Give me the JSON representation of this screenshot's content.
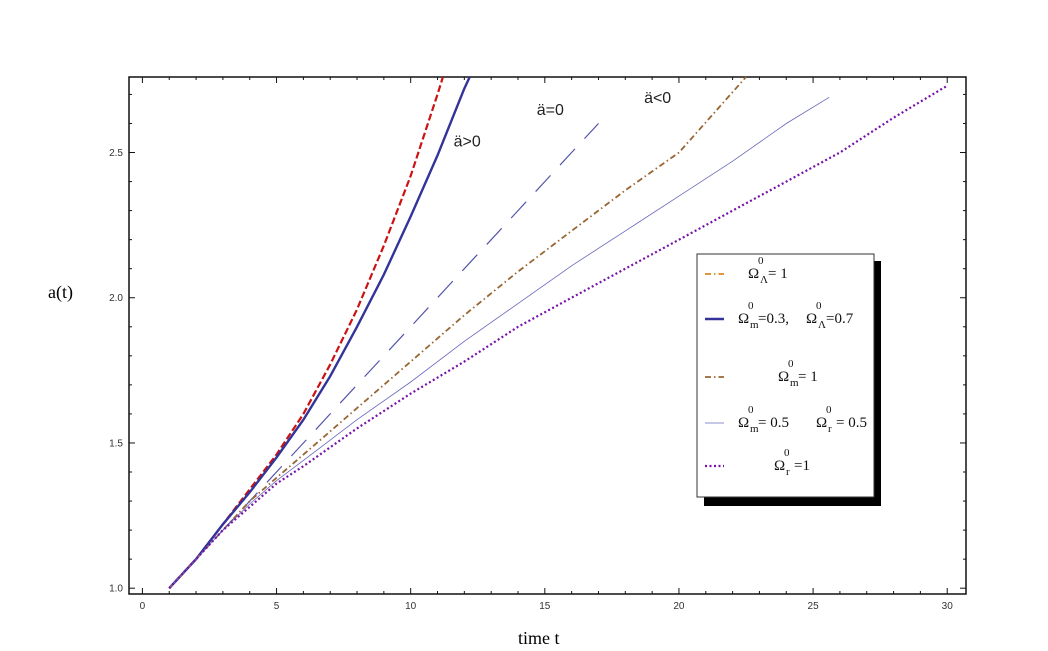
{
  "chart_data": {
    "type": "line",
    "xlabel": "time t",
    "ylabel": "a(t)",
    "xlim": [
      -0.5,
      30.7
    ],
    "ylim": [
      0.98,
      2.76
    ],
    "x_ticks": [
      0,
      5,
      10,
      15,
      20,
      25,
      30
    ],
    "y_ticks": [
      1.0,
      1.5,
      2.0,
      2.5
    ],
    "grid": false,
    "legend_position": "right",
    "series": [
      {
        "color": "#cc1111",
        "style": "dashed-fine",
        "x": [
          1,
          2,
          3,
          4,
          5,
          6,
          7,
          8,
          9,
          10,
          11,
          11.2
        ],
        "y": [
          1.0,
          1.1,
          1.22,
          1.34,
          1.46,
          1.6,
          1.77,
          1.96,
          2.18,
          2.42,
          2.7,
          2.76
        ]
      },
      {
        "name": "Ω_m^0=0.3, Ω_Λ^0=0.7",
        "color": "#333399",
        "style": "solid",
        "x": [
          1,
          2,
          3,
          4,
          5,
          6,
          7,
          8,
          9,
          10,
          11,
          12,
          12.2
        ],
        "y": [
          1.0,
          1.1,
          1.22,
          1.33,
          1.45,
          1.58,
          1.73,
          1.9,
          2.08,
          2.28,
          2.49,
          2.72,
          2.76
        ]
      },
      {
        "name": "Ω_Λ^0= 1",
        "color": "#dd8822",
        "style": "dash-dot",
        "x": [],
        "y": []
      },
      {
        "color": "#5555aa",
        "style": "long-dash",
        "x": [
          1,
          2,
          3,
          4,
          5,
          6,
          7,
          8,
          9,
          10,
          11,
          12,
          13,
          14,
          15,
          16,
          17
        ],
        "y": [
          1.0,
          1.1,
          1.2,
          1.3,
          1.4,
          1.5,
          1.6,
          1.7,
          1.8,
          1.9,
          2.0,
          2.1,
          2.2,
          2.3,
          2.4,
          2.5,
          2.6
        ]
      },
      {
        "name": "Ω_m^0= 1",
        "color": "#996633",
        "style": "dash-dot",
        "x": [
          1,
          2,
          3,
          4,
          5,
          6,
          8,
          10,
          12,
          14,
          16,
          18,
          20,
          22.5
        ],
        "y": [
          1.0,
          1.1,
          1.2,
          1.3,
          1.38,
          1.46,
          1.62,
          1.78,
          1.94,
          2.09,
          2.23,
          2.37,
          2.5,
          2.76
        ]
      },
      {
        "name": "Ω_m^0= 0.5, Ω_r^0= 0.5",
        "color": "#6666bb",
        "style": "thin",
        "x": [
          1,
          2,
          3,
          4,
          5,
          6,
          8,
          10,
          12,
          14,
          16,
          18,
          20,
          22,
          24,
          25.6
        ],
        "y": [
          1.0,
          1.1,
          1.2,
          1.29,
          1.37,
          1.44,
          1.58,
          1.71,
          1.85,
          1.98,
          2.11,
          2.23,
          2.35,
          2.47,
          2.6,
          2.69
        ]
      },
      {
        "name": "Ω_r^0=1",
        "color": "#7711aa",
        "style": "dotted",
        "x": [
          1,
          2,
          3,
          4,
          5,
          6,
          8,
          10,
          12,
          14,
          16,
          18,
          20,
          22,
          24,
          26,
          28,
          30
        ],
        "y": [
          1.0,
          1.1,
          1.2,
          1.28,
          1.36,
          1.42,
          1.55,
          1.67,
          1.78,
          1.9,
          2.0,
          2.1,
          2.2,
          2.3,
          2.4,
          2.5,
          2.62,
          2.73
        ]
      }
    ],
    "annotations": [
      {
        "text": "ä>0",
        "x": 11.6,
        "y": 2.52
      },
      {
        "text": "ä=0",
        "x": 14.7,
        "y": 2.63
      },
      {
        "text": "ä<0",
        "x": 18.7,
        "y": 2.67
      }
    ],
    "legend": [
      {
        "color": "#dd8822",
        "style": "dash-dot",
        "parts": [
          {
            "sym": "Ω",
            "sup": "0",
            "sub": "Λ",
            "rest": "= 1"
          }
        ]
      },
      {
        "color": "#333399",
        "style": "solid",
        "parts": [
          {
            "sym": "Ω",
            "sup": "0",
            "sub": "m",
            "rest": "=0.3,"
          },
          {
            "sym": "Ω",
            "sup": "0",
            "sub": "Λ",
            "rest": "=0.7"
          }
        ]
      },
      {
        "color": "#996633",
        "style": "dash-dot",
        "parts": [
          {
            "sym": "Ω",
            "sup": "0",
            "sub": "m",
            "rest": "= 1"
          }
        ]
      },
      {
        "color": "#6666bb",
        "style": "thin",
        "parts": [
          {
            "sym": "Ω",
            "sup": "0",
            "sub": "m",
            "rest": "= 0.5"
          },
          {
            "sym": "Ω",
            "sup": "0",
            "sub": "r",
            "rest": "= 0.5"
          }
        ]
      },
      {
        "color": "#7711aa",
        "style": "dotted",
        "parts": [
          {
            "sym": "Ω",
            "sup": "0",
            "sub": "r",
            "rest": "=1"
          }
        ]
      }
    ]
  }
}
